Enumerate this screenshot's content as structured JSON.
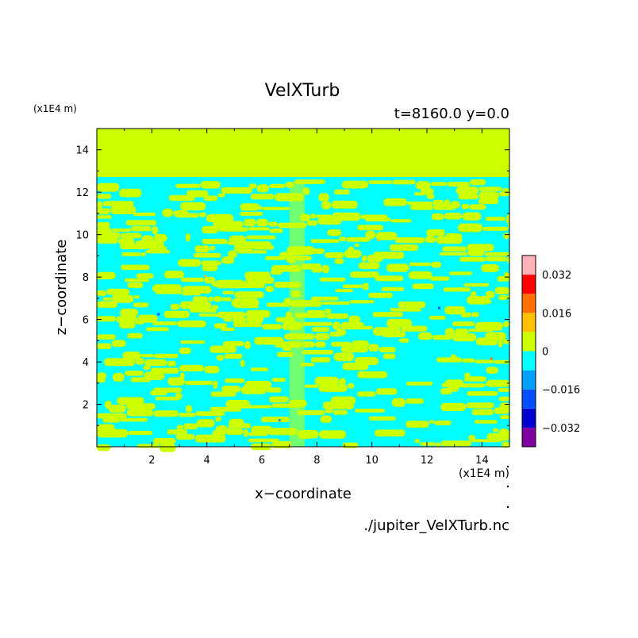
{
  "chart_data": {
    "type": "heatmap",
    "title": "VelXTurb",
    "subtitle": "t=8160.0 y=0.0",
    "xlabel": "x−coordinate",
    "ylabel": "z−coordinate",
    "x_unit_label": "(x1E4 m)",
    "y_unit_label": "(x1E4 m)",
    "xlim": [
      0.0,
      15.0
    ],
    "ylim": [
      0.0,
      15.0
    ],
    "x_ticks": [
      "2",
      "4",
      "6",
      "8",
      "10",
      "12",
      "14"
    ],
    "y_ticks": [
      "2",
      "4",
      "6",
      "8",
      "10",
      "12",
      "14"
    ],
    "x_tick_values": [
      2,
      4,
      6,
      8,
      10,
      12,
      14
    ],
    "y_tick_values": [
      2,
      4,
      6,
      8,
      10,
      12,
      14
    ],
    "source_file": "./jupiter_VelXTurb.nc",
    "turbulent_layer_top": 12.5,
    "dominant_upper_value_color": "#ccff00",
    "colorbar": {
      "levels": [
        -0.04,
        -0.032,
        -0.024,
        -0.016,
        -0.008,
        0.0,
        0.008,
        0.016,
        0.024,
        0.032,
        0.04
      ],
      "colors": [
        "#7f00a0",
        "#0000d0",
        "#0050ff",
        "#00a0ff",
        "#00ffff",
        "#ccff00",
        "#ffc000",
        "#ff7000",
        "#ff0000",
        "#ffb0b8"
      ],
      "tick_labels": [
        "0.032",
        "0.016",
        "0",
        "−0.016",
        "−0.032"
      ],
      "tick_values": [
        0.032,
        0.016,
        0.0,
        -0.016,
        -0.032
      ]
    }
  }
}
